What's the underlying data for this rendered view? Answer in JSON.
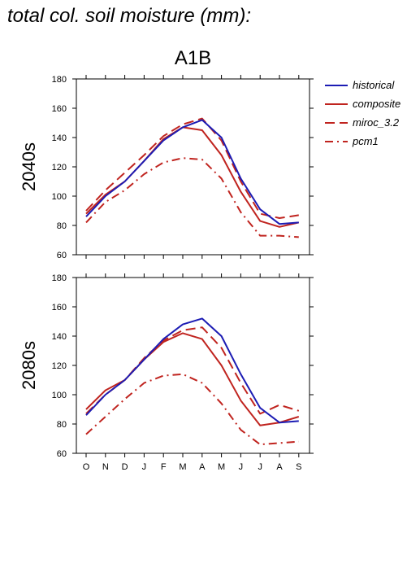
{
  "page_title": "total col. soil moisture (mm):",
  "scenario": "A1B",
  "months": [
    "O",
    "N",
    "D",
    "J",
    "F",
    "M",
    "A",
    "M",
    "J",
    "J",
    "A",
    "S"
  ],
  "legend": [
    {
      "label": "historical",
      "color": "#1c1cb4",
      "dash": "solid"
    },
    {
      "label": "composite",
      "color": "#c0241f",
      "dash": "solid"
    },
    {
      "label": "miroc_3.2",
      "color": "#c0241f",
      "dash": "dash"
    },
    {
      "label": "pcm1",
      "color": "#c0241f",
      "dash": "dashdot"
    }
  ],
  "chart_data": [
    {
      "type": "line",
      "title": "A1B",
      "ylabel": "2040s",
      "xlabel": "",
      "categories": [
        "O",
        "N",
        "D",
        "J",
        "F",
        "M",
        "A",
        "M",
        "J",
        "J",
        "A",
        "S"
      ],
      "ylim": [
        60,
        180
      ],
      "yticks": [
        60,
        80,
        100,
        120,
        140,
        160,
        180
      ],
      "grid": false,
      "legend_position": "right",
      "series": [
        {
          "name": "historical",
          "values": [
            86,
            100,
            110,
            124,
            138,
            147,
            152,
            140,
            112,
            91,
            81,
            82
          ]
        },
        {
          "name": "composite",
          "values": [
            88,
            101,
            110,
            124,
            139,
            147,
            145,
            128,
            103,
            83,
            79,
            82
          ]
        },
        {
          "name": "miroc_3.2",
          "values": [
            90,
            104,
            116,
            128,
            141,
            149,
            153,
            138,
            110,
            88,
            85,
            87
          ]
        },
        {
          "name": "pcm1",
          "values": [
            82,
            96,
            104,
            115,
            123,
            126,
            125,
            112,
            89,
            73,
            73,
            72
          ]
        }
      ]
    },
    {
      "type": "line",
      "title": "",
      "ylabel": "2080s",
      "xlabel": "",
      "categories": [
        "O",
        "N",
        "D",
        "J",
        "F",
        "M",
        "A",
        "M",
        "J",
        "J",
        "A",
        "S"
      ],
      "ylim": [
        60,
        180
      ],
      "yticks": [
        60,
        80,
        100,
        120,
        140,
        160,
        180
      ],
      "grid": false,
      "series": [
        {
          "name": "historical",
          "values": [
            86,
            100,
            110,
            124,
            138,
            148,
            152,
            140,
            114,
            91,
            81,
            82
          ]
        },
        {
          "name": "composite",
          "values": [
            90,
            103,
            110,
            124,
            136,
            142,
            138,
            120,
            96,
            79,
            81,
            85
          ]
        },
        {
          "name": "miroc_3.2",
          "values": [
            87,
            100,
            110,
            125,
            137,
            144,
            146,
            132,
            108,
            87,
            93,
            89
          ]
        },
        {
          "name": "pcm1",
          "values": [
            73,
            85,
            97,
            108,
            113,
            114,
            108,
            94,
            76,
            66,
            67,
            68
          ]
        }
      ]
    }
  ]
}
